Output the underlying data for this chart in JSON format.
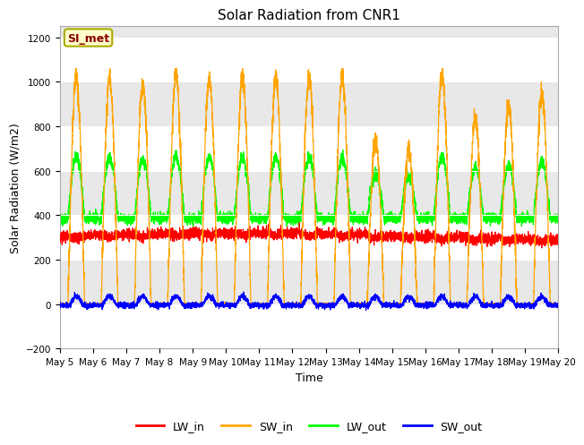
{
  "title": "Solar Radiation from CNR1",
  "xlabel": "Time",
  "ylabel": "Solar Radiation (W/m2)",
  "ylim": [
    -200,
    1250
  ],
  "xlim_days": [
    0,
    15
  ],
  "yticks": [
    -200,
    0,
    200,
    400,
    600,
    800,
    1000,
    1200
  ],
  "xtick_labels": [
    "May 5",
    "May 6",
    "May 7",
    "May 8",
    "May 9",
    "May 10",
    "May 11",
    "May 12",
    "May 13",
    "May 14",
    "May 15",
    "May 16",
    "May 17",
    "May 18",
    "May 19",
    "May 20"
  ],
  "annotation_text": "SI_met",
  "annotation_box_facecolor": "#FFFFCC",
  "annotation_box_edgecolor": "#AAAA00",
  "annotation_text_color": "#8B0000",
  "figure_facecolor": "#FFFFFF",
  "plot_facecolor": "#E8E8E8",
  "line_colors": {
    "LW_in": "#FF0000",
    "SW_in": "#FFA500",
    "LW_out": "#00FF00",
    "SW_out": "#0000FF"
  },
  "grid_color": "#FFFFFF",
  "title_fontsize": 11,
  "axis_label_fontsize": 9,
  "tick_fontsize": 7.5,
  "legend_fontsize": 9,
  "n_points": 4320,
  "days": 15
}
